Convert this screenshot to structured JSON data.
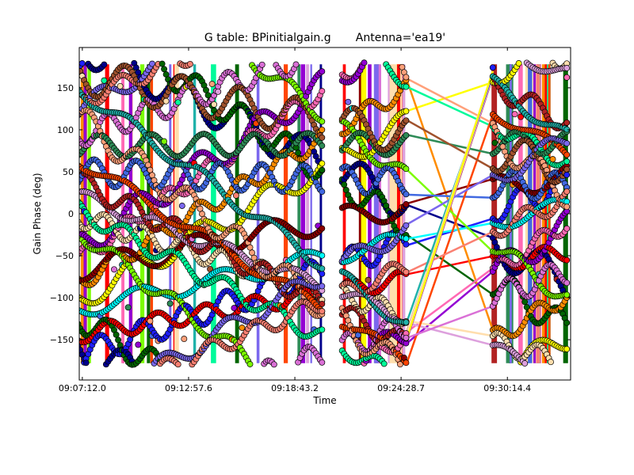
{
  "chart_data": {
    "type": "scatter",
    "title": "G table: BPinitialgain.g       Antenna='ea19'",
    "xlabel": "Time",
    "ylabel": "Gain Phase (deg)",
    "x_ticks": [
      {
        "seconds": 0,
        "label": "09:07:12.0"
      },
      {
        "seconds": 345.6,
        "label": "09:12:57.6"
      },
      {
        "seconds": 691.2,
        "label": "09:18:43.2"
      },
      {
        "seconds": 1036.7,
        "label": "09:24:28.7"
      },
      {
        "seconds": 1382.4,
        "label": "09:30:14.4"
      }
    ],
    "y_ticks": [
      150,
      100,
      50,
      0,
      -50,
      -100,
      -150
    ],
    "xlim_seconds": [
      -10,
      1588
    ],
    "ylim": [
      -198,
      198
    ],
    "scans": [
      {
        "start_seconds": -20,
        "end_seconds": 780
      },
      {
        "start_seconds": 845,
        "end_seconds": 1055
      },
      {
        "start_seconds": 1335,
        "end_seconds": 1580
      }
    ],
    "colors": [
      "#1f1fff",
      "#00008b",
      "#ff0000",
      "#006400",
      "#00ffff",
      "#ffff00",
      "#ff8c00",
      "#8b0000",
      "#ff69b4",
      "#9400d3",
      "#7cfc00",
      "#ffdead",
      "#00fa9a",
      "#dda0dd",
      "#b22222",
      "#4169e1",
      "#ff4500",
      "#2e8b57",
      "#da70d6",
      "#ffa07a",
      "#7b68ee",
      "#fa8072",
      "#20b2aa",
      "#a0522d"
    ],
    "grid": false,
    "legend": "none"
  }
}
